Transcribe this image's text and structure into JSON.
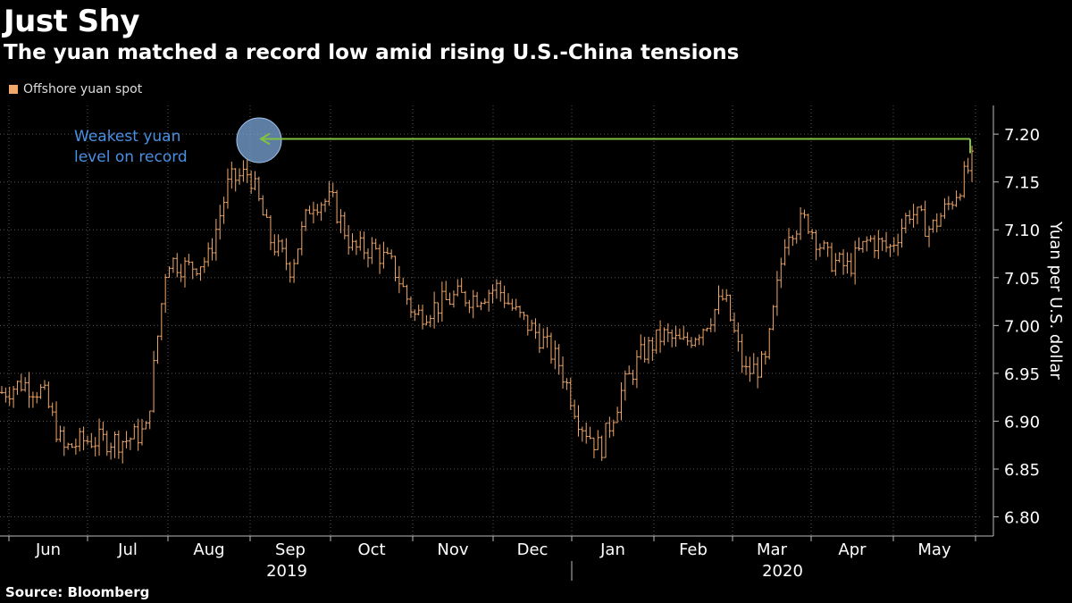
{
  "title": "Just Shy",
  "subtitle": "The yuan matched a record low amid rising U.S.-China tensions",
  "source": "Source: Bloomberg",
  "colors": {
    "series": "#f2a869",
    "grid": "#555555",
    "record_line": "#7fc241",
    "annotation_text": "#4a90e2",
    "circle_fill": "#7da7d9",
    "circle_stroke": "#9fc3ee",
    "axis": "#bbbbbb"
  },
  "chart_data": {
    "type": "ohlc",
    "title": "Just Shy",
    "subtitle": "The yuan matched a record low amid rising U.S.-China tensions",
    "legend": [
      {
        "label": "Offshore yuan spot",
        "position": "top-left"
      }
    ],
    "ylabel": "Yuan per U.S. dollar",
    "ylim": [
      6.78,
      7.23
    ],
    "yticks": [
      6.8,
      6.85,
      6.9,
      6.95,
      7.0,
      7.05,
      7.1,
      7.15,
      7.2
    ],
    "ytick_labels": [
      "6.80",
      "6.85",
      "6.90",
      "6.95",
      "7.00",
      "7.05",
      "7.10",
      "7.15",
      "7.20"
    ],
    "x_months": [
      "Jun",
      "Jul",
      "Aug",
      "Sep",
      "Oct",
      "Nov",
      "Dec",
      "Jan",
      "Feb",
      "Mar",
      "Apr",
      "May"
    ],
    "x_years": [
      "2019",
      "2020"
    ],
    "annotation": {
      "text_line1": "Weakest yuan",
      "text_line2": "level on record",
      "record_value": 7.195
    },
    "weekly_closes": [
      {
        "week": "Jun-1",
        "close": 6.93
      },
      {
        "week": "Jun-2",
        "close": 6.94
      },
      {
        "week": "Jun-3",
        "close": 6.93
      },
      {
        "week": "Jun-4",
        "close": 6.87
      },
      {
        "week": "Jul-1",
        "close": 6.88
      },
      {
        "week": "Jul-2",
        "close": 6.88
      },
      {
        "week": "Jul-3",
        "close": 6.88
      },
      {
        "week": "Jul-4",
        "close": 6.89
      },
      {
        "week": "Aug-1",
        "close": 7.07
      },
      {
        "week": "Aug-2",
        "close": 7.06
      },
      {
        "week": "Aug-3",
        "close": 7.07
      },
      {
        "week": "Aug-4",
        "close": 7.15
      },
      {
        "week": "Sep-1",
        "close": 7.16
      },
      {
        "week": "Sep-2",
        "close": 7.09
      },
      {
        "week": "Sep-3",
        "close": 7.06
      },
      {
        "week": "Sep-4",
        "close": 7.13
      },
      {
        "week": "Oct-1",
        "close": 7.13
      },
      {
        "week": "Oct-2",
        "close": 7.08
      },
      {
        "week": "Oct-3",
        "close": 7.08
      },
      {
        "week": "Oct-4",
        "close": 7.06
      },
      {
        "week": "Nov-1",
        "close": 7.01
      },
      {
        "week": "Nov-2",
        "close": 7.02
      },
      {
        "week": "Nov-3",
        "close": 7.03
      },
      {
        "week": "Nov-4",
        "close": 7.03
      },
      {
        "week": "Dec-1",
        "close": 7.04
      },
      {
        "week": "Dec-2",
        "close": 7.01
      },
      {
        "week": "Dec-3",
        "close": 6.99
      },
      {
        "week": "Dec-4",
        "close": 6.96
      },
      {
        "week": "Jan-1",
        "close": 6.9
      },
      {
        "week": "Jan-2",
        "close": 6.87
      },
      {
        "week": "Jan-3",
        "close": 6.93
      },
      {
        "week": "Jan-4",
        "close": 6.97
      },
      {
        "week": "Feb-1",
        "close": 6.99
      },
      {
        "week": "Feb-2",
        "close": 6.98
      },
      {
        "week": "Feb-3",
        "close": 7.0
      },
      {
        "week": "Feb-4",
        "close": 7.03
      },
      {
        "week": "Mar-1",
        "close": 6.95
      },
      {
        "week": "Mar-2",
        "close": 6.96
      },
      {
        "week": "Mar-3",
        "close": 7.1
      },
      {
        "week": "Mar-4",
        "close": 7.11
      },
      {
        "week": "Apr-1",
        "close": 7.07
      },
      {
        "week": "Apr-2",
        "close": 7.06
      },
      {
        "week": "Apr-3",
        "close": 7.09
      },
      {
        "week": "Apr-4",
        "close": 7.08
      },
      {
        "week": "May-1",
        "close": 7.12
      },
      {
        "week": "May-2",
        "close": 7.1
      },
      {
        "week": "May-3",
        "close": 7.13
      },
      {
        "week": "May-4",
        "close": 7.17
      }
    ]
  }
}
